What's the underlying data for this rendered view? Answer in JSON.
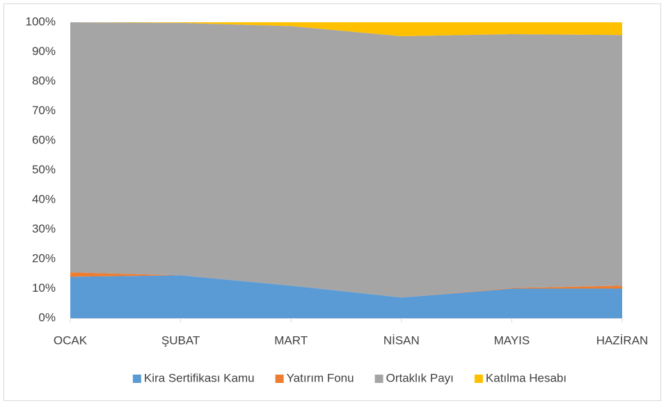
{
  "chart_data": {
    "type": "stacked-area",
    "categories": [
      "OCAK",
      "ŞUBAT",
      "MART",
      "NİSAN",
      "MAYIS",
      "HAZİRAN"
    ],
    "series": [
      {
        "name": "Kira Sertifikası Kamu",
        "color": "#5b9bd5",
        "values": [
          14,
          14.5,
          11,
          7,
          10,
          10
        ]
      },
      {
        "name": "Yatırım Fonu",
        "color": "#ed7d31",
        "values": [
          1.5,
          0,
          0,
          0,
          0.2,
          1
        ]
      },
      {
        "name": "Ortaklık Payı",
        "color": "#a5a5a5",
        "values": [
          84.5,
          85.3,
          87.7,
          88.3,
          85.8,
          84.7
        ]
      },
      {
        "name": "Katılma Hesabı",
        "color": "#ffc000",
        "values": [
          0,
          0.2,
          1.3,
          4.7,
          4,
          4.3
        ]
      }
    ],
    "ylim": [
      0,
      100
    ],
    "yticks": [
      {
        "value": 0,
        "label": "0%"
      },
      {
        "value": 10,
        "label": "10%"
      },
      {
        "value": 20,
        "label": "20%"
      },
      {
        "value": 30,
        "label": "30%"
      },
      {
        "value": 40,
        "label": "40%"
      },
      {
        "value": 50,
        "label": "50%"
      },
      {
        "value": 60,
        "label": "60%"
      },
      {
        "value": 70,
        "label": "70%"
      },
      {
        "value": 80,
        "label": "80%"
      },
      {
        "value": 90,
        "label": "90%"
      },
      {
        "value": 100,
        "label": "100%"
      }
    ],
    "legend": "bottom"
  }
}
